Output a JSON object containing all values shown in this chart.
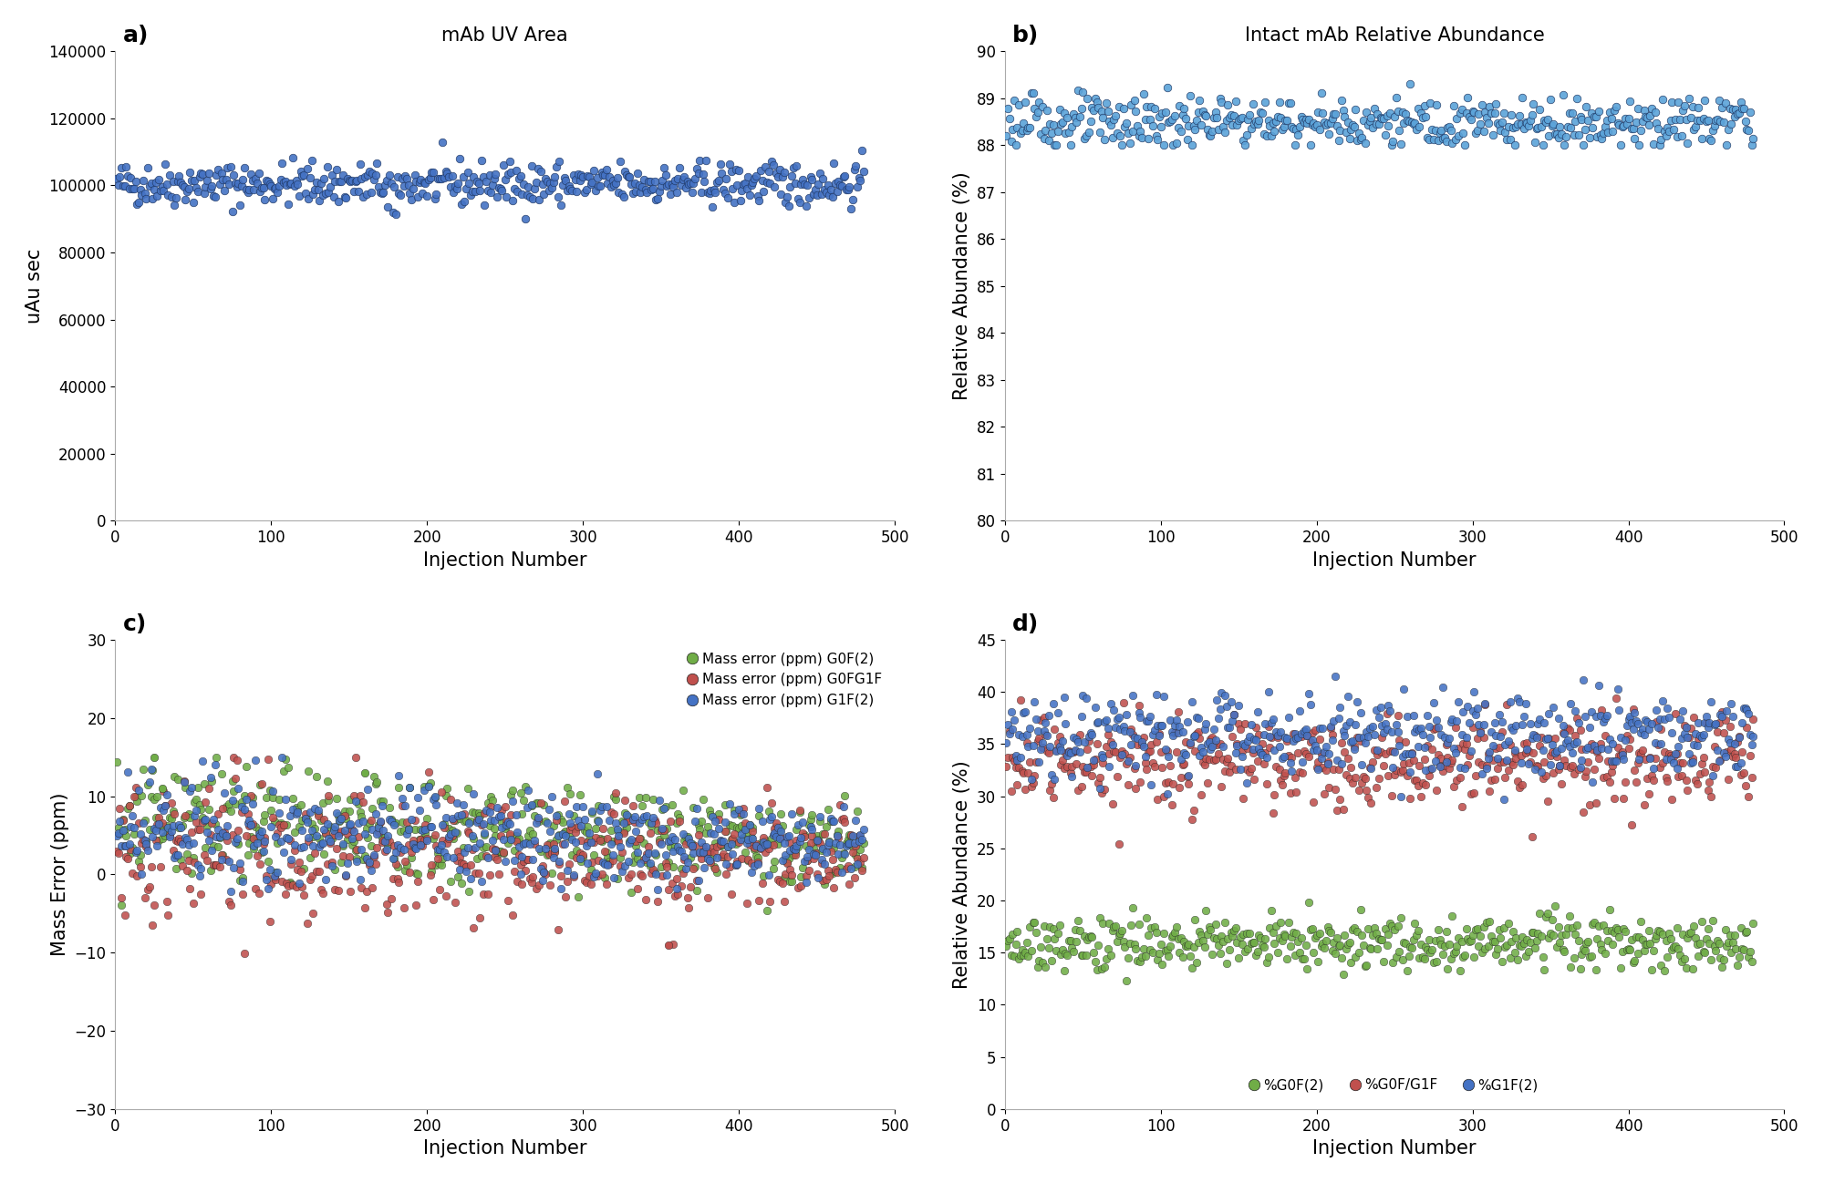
{
  "n_injections": 480,
  "panel_a": {
    "title": "mAb UV Area",
    "label": "a)",
    "ylabel": "uAu sec",
    "xlabel": "Injection Number",
    "ylim": [
      0,
      140000
    ],
    "yticks": [
      0,
      20000,
      40000,
      60000,
      80000,
      100000,
      120000,
      140000
    ],
    "xlim": [
      0,
      500
    ],
    "xticks": [
      0,
      100,
      200,
      300,
      400,
      500
    ],
    "mean": 100500,
    "std": 3200,
    "color": "#4472C4",
    "seed": 42
  },
  "panel_b": {
    "title": "Intact mAb Relative Abundance",
    "label": "b)",
    "ylabel": "Relative Abundance (%)",
    "xlabel": "Injection Number",
    "ylim": [
      80,
      90
    ],
    "yticks": [
      80,
      81,
      82,
      83,
      84,
      85,
      86,
      87,
      88,
      89,
      90
    ],
    "xlim": [
      0,
      500
    ],
    "xticks": [
      0,
      100,
      200,
      300,
      400,
      500
    ],
    "mean": 88.5,
    "std": 0.28,
    "color": "#5BA3D9",
    "seed": 123
  },
  "panel_c": {
    "label": "c)",
    "ylabel": "Mass Error (ppm)",
    "xlabel": "Injection Number",
    "ylim": [
      -30,
      30
    ],
    "yticks": [
      -30,
      -20,
      -10,
      0,
      10,
      20,
      30
    ],
    "xlim": [
      0,
      500
    ],
    "xticks": [
      0,
      100,
      200,
      300,
      400,
      500
    ],
    "series": [
      {
        "name": "Mass error (ppm) G0F(2)",
        "color": "#70AD47",
        "mean": 5.5,
        "std": 3.2,
        "seed": 11
      },
      {
        "name": "Mass error (ppm) G0FG1F",
        "color": "#C0504D",
        "mean": 2.5,
        "std": 3.8,
        "seed": 21
      },
      {
        "name": "Mass error (ppm) G1F(2)",
        "color": "#4472C4",
        "mean": 5.0,
        "std": 2.8,
        "seed": 31
      }
    ]
  },
  "panel_d": {
    "label": "d)",
    "ylabel": "Relative Abundance (%)",
    "xlabel": "Injection Number",
    "ylim": [
      0,
      45
    ],
    "yticks": [
      0,
      5,
      10,
      15,
      20,
      25,
      30,
      35,
      40,
      45
    ],
    "xlim": [
      0,
      500
    ],
    "xticks": [
      0,
      100,
      200,
      300,
      400,
      500
    ],
    "series": [
      {
        "name": "%G0F(2)",
        "color": "#70AD47",
        "mean": 16.0,
        "std": 1.3,
        "seed": 41
      },
      {
        "name": "%G0F/G1F",
        "color": "#C0504D",
        "mean": 33.5,
        "std": 2.2,
        "seed": 51
      },
      {
        "name": "%G1F(2)",
        "color": "#4472C4",
        "mean": 36.0,
        "std": 2.0,
        "seed": 61
      }
    ]
  },
  "figure_bg": "#FFFFFF",
  "axes_bg": "#FFFFFF",
  "label_fontsize": 15,
  "title_fontsize": 15,
  "tick_fontsize": 12,
  "legend_fontsize": 11,
  "marker_size": 38
}
